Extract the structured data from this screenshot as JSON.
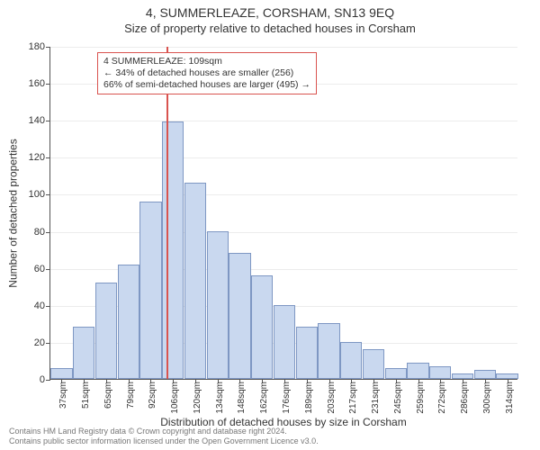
{
  "title_main": "4, SUMMERLEAZE, CORSHAM, SN13 9EQ",
  "title_sub": "Size of property relative to detached houses in Corsham",
  "y_axis_label": "Number of detached properties",
  "x_axis_label": "Distribution of detached houses by size in Corsham",
  "chart": {
    "type": "histogram",
    "y_max": 180,
    "y_tick_step": 20,
    "background_color": "#ffffff",
    "grid_color": "#ececec",
    "axis_color": "#555555",
    "bar_fill": "#c9d8ef",
    "bar_border": "#7e97c3",
    "marker_color": "#d9534f",
    "categories": [
      "37sqm",
      "51sqm",
      "65sqm",
      "79sqm",
      "92sqm",
      "106sqm",
      "120sqm",
      "134sqm",
      "148sqm",
      "162sqm",
      "176sqm",
      "189sqm",
      "203sqm",
      "217sqm",
      "231sqm",
      "245sqm",
      "259sqm",
      "272sqm",
      "286sqm",
      "300sqm",
      "314sqm"
    ],
    "values": [
      6,
      28,
      52,
      62,
      96,
      139,
      106,
      80,
      68,
      56,
      40,
      28,
      30,
      20,
      16,
      6,
      9,
      7,
      3,
      5,
      3
    ],
    "marker_index": 5,
    "marker_value_sqm": 109,
    "tick_fontsize": 11,
    "cat_fontsize": 10,
    "title_fontsize": 14,
    "axis_label_fontsize": 12
  },
  "info_box": {
    "line1": "4 SUMMERLEAZE: 109sqm",
    "line2": "← 34% of detached houses are smaller (256)",
    "line3": "66% of semi-detached houses are larger (495) →",
    "border_color": "#d9534f",
    "fontsize": 10.5
  },
  "footer_line1": "Contains HM Land Registry data © Crown copyright and database right 2024.",
  "footer_line2": "Contains public sector information licensed under the Open Government Licence v3.0."
}
